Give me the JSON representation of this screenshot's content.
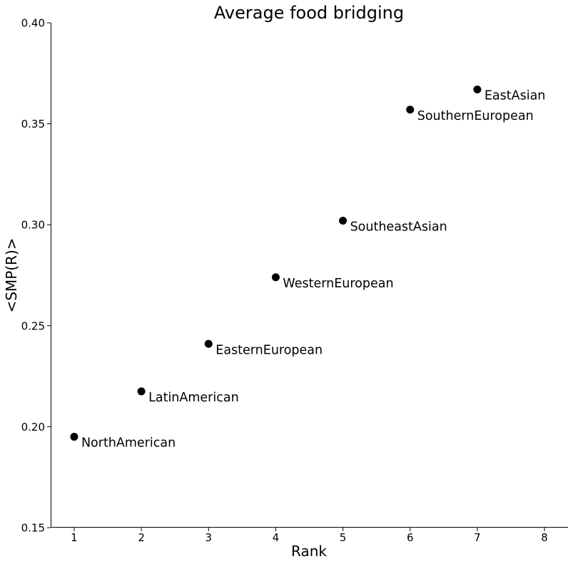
{
  "chart_data": {
    "type": "scatter",
    "title": "Average food bridging",
    "xlabel": "Rank",
    "ylabel": "<SMP(R)>",
    "xlim": [
      0.65,
      8.35
    ],
    "ylim": [
      0.15,
      0.4
    ],
    "xticks": [
      "1",
      "2",
      "3",
      "4",
      "5",
      "6",
      "7",
      "8"
    ],
    "yticks": [
      "0.15",
      "0.20",
      "0.25",
      "0.30",
      "0.35",
      "0.40"
    ],
    "grid": false,
    "marker_color": "#000000",
    "points": [
      {
        "x": 1,
        "y": 0.195,
        "label": "NorthAmerican"
      },
      {
        "x": 2,
        "y": 0.2175,
        "label": "LatinAmerican"
      },
      {
        "x": 3,
        "y": 0.241,
        "label": "EasternEuropean"
      },
      {
        "x": 4,
        "y": 0.274,
        "label": "WesternEuropean"
      },
      {
        "x": 5,
        "y": 0.302,
        "label": "SoutheastAsian"
      },
      {
        "x": 6,
        "y": 0.357,
        "label": "SouthernEuropean"
      },
      {
        "x": 7,
        "y": 0.367,
        "label": "EastAsian"
      }
    ]
  }
}
